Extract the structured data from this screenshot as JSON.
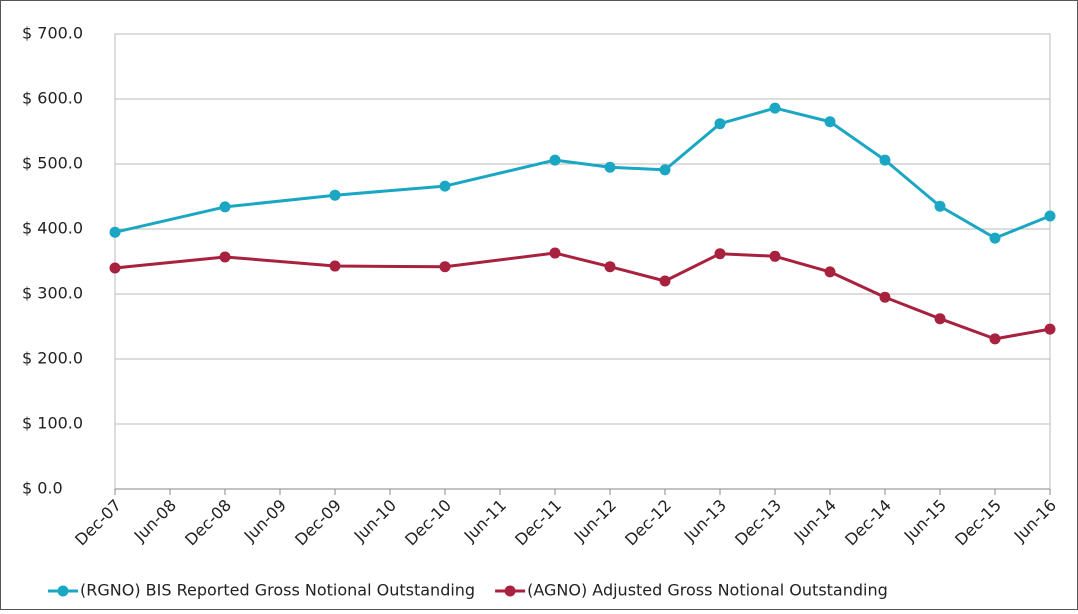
{
  "chart_data": {
    "type": "line",
    "xticks": [
      "Dec-07",
      "Jun-08",
      "Dec-08",
      "Jun-09",
      "Dec-09",
      "Jun-10",
      "Dec-10",
      "Jun-11",
      "Dec-11",
      "Jun-12",
      "Dec-12",
      "Jun-13",
      "Dec-13",
      "Jun-14",
      "Dec-14",
      "Jun-15",
      "Dec-15",
      "Jun-16"
    ],
    "x": [
      "Dec-07",
      "Dec-08",
      "Dec-09",
      "Dec-10",
      "Dec-11",
      "Jun-12",
      "Dec-12",
      "Jun-13",
      "Dec-13",
      "Jun-14",
      "Dec-14",
      "Jun-15",
      "Dec-15",
      "Jun-16"
    ],
    "series": [
      {
        "name": "(RGNO) BIS Reported Gross Notional Outstanding",
        "color": "#1ba7c4",
        "values": [
          395,
          434,
          452,
          466,
          506,
          495,
          491,
          562,
          586,
          565,
          506,
          435,
          386,
          420
        ]
      },
      {
        "name": "(AGNO) Adjusted Gross Notional Outstanding",
        "color": "#a8213f",
        "values": [
          340,
          357,
          343,
          342,
          363,
          342,
          320,
          362,
          358,
          334,
          295,
          262,
          231,
          246
        ]
      }
    ],
    "ylim": [
      0,
      700
    ],
    "yticks": [
      {
        "value": 0,
        "label": "$ 0.0"
      },
      {
        "value": 100,
        "label": "$ 100.0"
      },
      {
        "value": 200,
        "label": "$ 200.0"
      },
      {
        "value": 300,
        "label": "$ 300.0"
      },
      {
        "value": 400,
        "label": "$ 400.0"
      },
      {
        "value": 500,
        "label": "$ 500.0"
      },
      {
        "value": 600,
        "label": "$ 600.0"
      },
      {
        "value": 700,
        "label": "$ 700.0"
      }
    ],
    "grid": true,
    "legend": "bottom"
  }
}
